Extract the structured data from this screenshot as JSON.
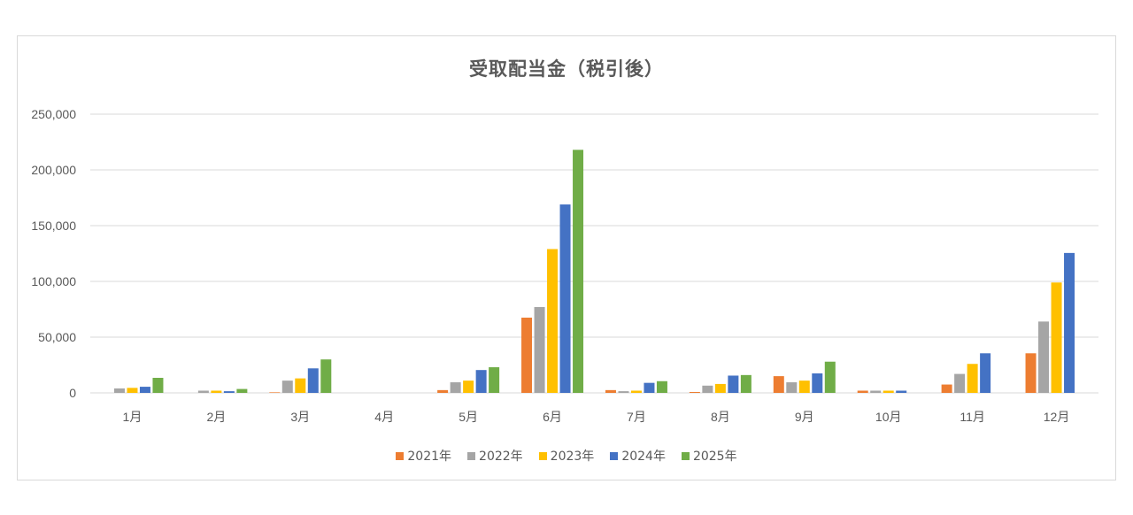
{
  "chart_title": "受取配当金（税引後）",
  "colors": {
    "2021年": "#ed7d31",
    "2022年": "#a5a5a5",
    "2023年": "#ffc000",
    "2024年": "#4472c4",
    "2025年": "#70ad47",
    "gridline": "#d9d9d9",
    "axis_text": "#595959"
  },
  "legend": [
    {
      "label": "2021年",
      "color": "#ed7d31"
    },
    {
      "label": "2022年",
      "color": "#a5a5a5"
    },
    {
      "label": "2023年",
      "color": "#ffc000"
    },
    {
      "label": "2024年",
      "color": "#4472c4"
    },
    {
      "label": "2025年",
      "color": "#70ad47"
    }
  ],
  "chart_data": {
    "type": "bar",
    "title": "受取配当金（税引後）",
    "xlabel": "",
    "ylabel": "",
    "ylim": [
      0,
      250000
    ],
    "yticks": [
      0,
      50000,
      100000,
      150000,
      200000,
      250000
    ],
    "ytick_labels": [
      "0",
      "50,000",
      "100,000",
      "150,000",
      "200,000",
      "250,000"
    ],
    "grid": true,
    "legend_position": "bottom",
    "categories": [
      "1月",
      "2月",
      "3月",
      "4月",
      "5月",
      "6月",
      "7月",
      "8月",
      "9月",
      "10月",
      "11月",
      "12月"
    ],
    "series": [
      {
        "name": "2021年",
        "values": [
          0,
          0,
          500,
          0,
          2500,
          67500,
          2500,
          800,
          15000,
          2000,
          7500,
          35500
        ]
      },
      {
        "name": "2022年",
        "values": [
          4000,
          2000,
          11000,
          0,
          9500,
          77000,
          1500,
          6500,
          9500,
          2000,
          17000,
          64000
        ]
      },
      {
        "name": "2023年",
        "values": [
          4500,
          2000,
          13000,
          0,
          11000,
          129000,
          2000,
          8000,
          11000,
          2000,
          26000,
          99000
        ]
      },
      {
        "name": "2024年",
        "values": [
          5500,
          1500,
          22000,
          0,
          20500,
          169000,
          9000,
          15500,
          17500,
          2000,
          35500,
          125500
        ]
      },
      {
        "name": "2025年",
        "values": [
          13500,
          3500,
          30000,
          0,
          23000,
          218000,
          10500,
          16000,
          28000,
          0,
          0,
          0
        ]
      }
    ]
  }
}
